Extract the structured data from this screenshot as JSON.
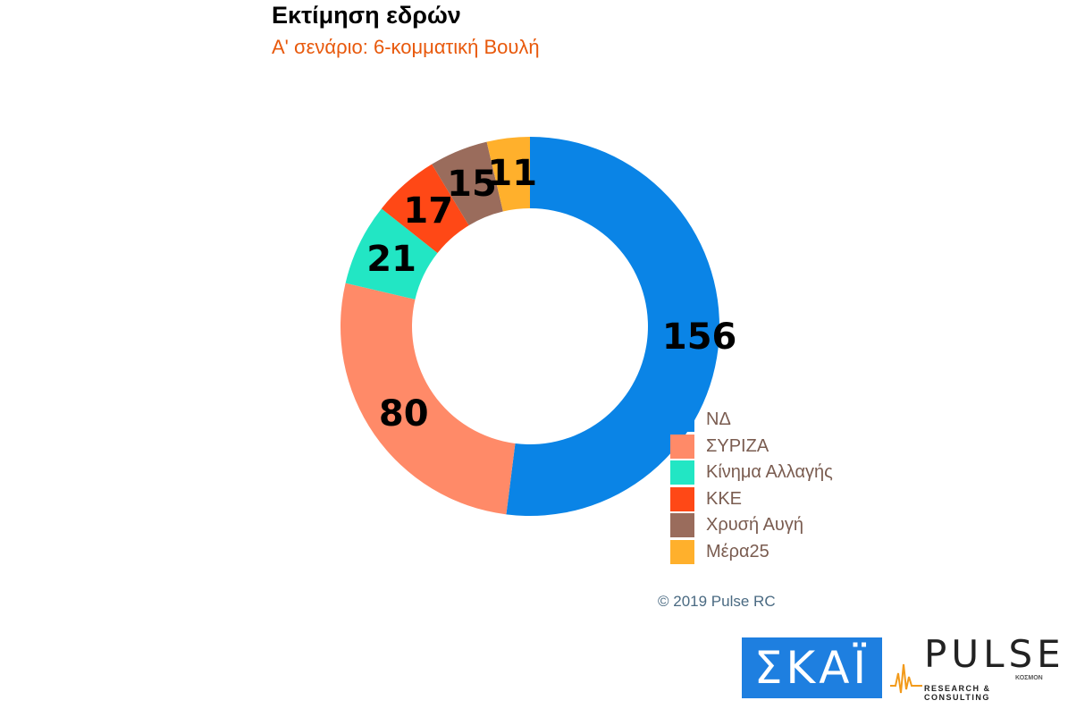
{
  "header": {
    "title": "Εκτίμηση εδρών",
    "subtitle": "Α' σενάριο: 6-κομματική Βουλή"
  },
  "chart_data": {
    "type": "pie",
    "donut": true,
    "categories": [
      "ΝΔ",
      "ΣΥΡΙΖΑ",
      "Κίνημα Αλλαγής",
      "ΚΚΕ",
      "Χρυσή Αυγή",
      "Μέρα25"
    ],
    "values": [
      156,
      80,
      21,
      17,
      15,
      11
    ],
    "value_labels": [
      "156",
      "80",
      "21",
      "17",
      "15",
      "11"
    ],
    "colors": [
      "#0a84e6",
      "#ff8a68",
      "#22e6c4",
      "#ff4816",
      "#9a6c5c",
      "#ffb02c"
    ],
    "legend": "bottom-right"
  },
  "credit": "© 2019 Pulse RC",
  "logos": {
    "skai": "ΣΚΑΪ",
    "pulse": "PULSE",
    "pulse_sub": "RESEARCH & CONSULTING",
    "pulse_kosmon": "ΚΟΣΜΟΝ"
  }
}
